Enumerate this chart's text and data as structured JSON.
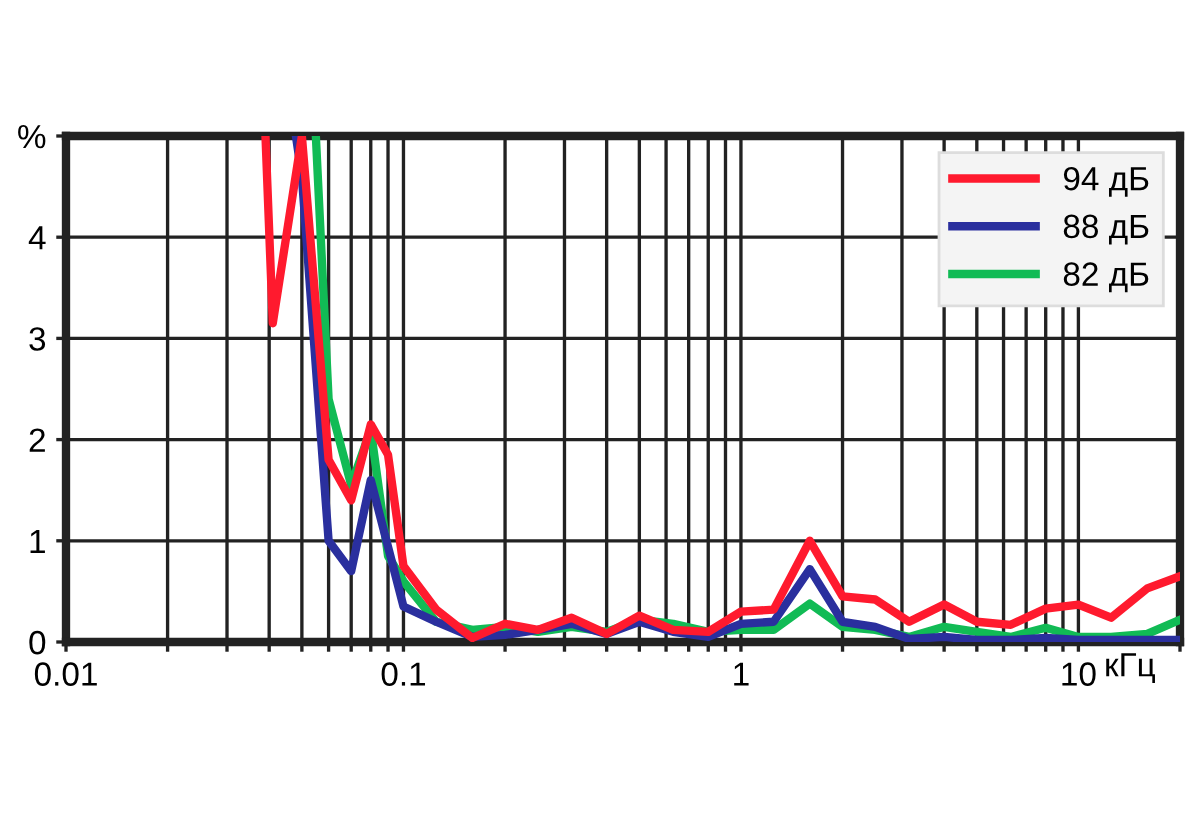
{
  "chart_data": {
    "type": "line",
    "xlabel": "кГц",
    "log": "x",
    "grid": true,
    "legend": "top right",
    "xlim": [
      0.01,
      20
    ],
    "ylim": [
      0,
      5
    ],
    "xticks": [
      0.01,
      {
        "value": 0.02,
        "label": null
      },
      {
        "value": 0.03,
        "label": null
      },
      {
        "value": 0.04,
        "label": null
      },
      {
        "value": 0.05,
        "label": null
      },
      {
        "value": 0.06,
        "label": null
      },
      {
        "value": 0.07,
        "label": null
      },
      {
        "value": 0.08,
        "label": null
      },
      {
        "value": 0.09,
        "label": null
      },
      0.1,
      {
        "value": 0.2,
        "label": null
      },
      {
        "value": 0.3,
        "label": null
      },
      {
        "value": 0.4,
        "label": null
      },
      {
        "value": 0.5,
        "label": null
      },
      {
        "value": 0.6,
        "label": null
      },
      {
        "value": 0.7,
        "label": null
      },
      {
        "value": 0.8,
        "label": null
      },
      {
        "value": 0.9,
        "label": null
      },
      1,
      {
        "value": 2,
        "label": null
      },
      {
        "value": 3,
        "label": null
      },
      {
        "value": 4,
        "label": null
      },
      {
        "value": 5,
        "label": null
      },
      {
        "value": 6,
        "label": null
      },
      {
        "value": 7,
        "label": null
      },
      {
        "value": 8,
        "label": null
      },
      {
        "value": 9,
        "label": null
      },
      10,
      {
        "value": 20,
        "label": null
      }
    ],
    "yticks": [
      0,
      1,
      2,
      3,
      4,
      {
        "value": 5,
        "label": "%"
      }
    ],
    "series": [
      {
        "name": "94 дБ",
        "color": "#ff1a2e",
        "x": [
          0.039,
          0.041,
          0.05,
          0.06,
          0.07,
          0.08,
          0.09,
          0.1,
          0.125,
          0.16,
          0.2,
          0.25,
          0.315,
          0.4,
          0.5,
          0.63,
          0.8,
          1,
          1.25,
          1.6,
          2,
          2.5,
          3.15,
          4,
          5,
          6.3,
          8,
          10,
          12.5,
          16,
          20
        ],
        "values": [
          5,
          3.15,
          5,
          1.8,
          1.4,
          2.15,
          1.85,
          0.75,
          0.32,
          0.04,
          0.18,
          0.12,
          0.24,
          0.08,
          0.26,
          0.12,
          0.1,
          0.3,
          0.32,
          1.0,
          0.45,
          0.42,
          0.2,
          0.37,
          0.2,
          0.17,
          0.33,
          0.37,
          0.24,
          0.53,
          0.65
        ]
      },
      {
        "name": "88 дБ",
        "color": "#2a2f9e",
        "x": [
          0.048,
          0.05,
          0.06,
          0.07,
          0.08,
          0.1,
          0.125,
          0.16,
          0.2,
          0.25,
          0.315,
          0.4,
          0.5,
          0.63,
          0.8,
          1,
          1.25,
          1.6,
          2,
          2.5,
          3.15,
          4,
          5,
          6.3,
          8,
          10,
          12.5,
          16,
          20
        ],
        "values": [
          5,
          4.6,
          1.0,
          0.7,
          1.6,
          0.35,
          0.2,
          0.05,
          0.07,
          0.12,
          0.18,
          0.08,
          0.2,
          0.1,
          0.05,
          0.18,
          0.2,
          0.72,
          0.2,
          0.15,
          0.03,
          0.05,
          0.02,
          0.02,
          0.04,
          0.02,
          0.02,
          0.02,
          0.02
        ]
      },
      {
        "name": "82 дБ",
        "color": "#11bb55",
        "x": [
          0.055,
          0.06,
          0.07,
          0.08,
          0.09,
          0.1,
          0.125,
          0.16,
          0.2,
          0.25,
          0.315,
          0.4,
          0.5,
          0.63,
          0.8,
          1,
          1.25,
          1.6,
          2,
          2.5,
          3.15,
          4,
          5,
          6.3,
          8,
          10,
          12.5,
          16,
          20
        ],
        "values": [
          5,
          2.4,
          1.55,
          2.1,
          0.85,
          0.6,
          0.2,
          0.12,
          0.15,
          0.1,
          0.15,
          0.1,
          0.22,
          0.18,
          0.1,
          0.12,
          0.12,
          0.38,
          0.15,
          0.12,
          0.05,
          0.15,
          0.1,
          0.05,
          0.14,
          0.05,
          0.05,
          0.08,
          0.22
        ]
      }
    ]
  }
}
